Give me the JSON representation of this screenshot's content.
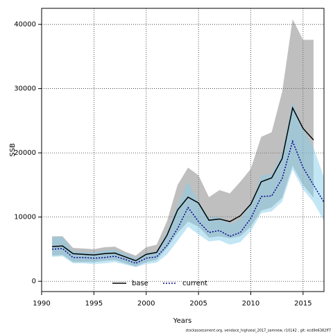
{
  "chart_data": {
    "type": "line",
    "xlabel": "Years",
    "ylabel": "SSB",
    "footnote": "stockassessment.org, vendace_highseal_2017_samnew, r10142 , git: ecd9e6382ff7",
    "xlim": [
      1990,
      2017
    ],
    "ylim": [
      -1600,
      42500
    ],
    "xticks": [
      1990,
      1995,
      2000,
      2005,
      2010,
      2015
    ],
    "yticks": [
      0,
      10000,
      20000,
      30000,
      40000
    ],
    "grid": true,
    "legend": "bottom",
    "series": [
      {
        "name": "base",
        "color": "#000000",
        "band_color": "#808080",
        "dash": false,
        "x": [
          1991,
          1992,
          1993,
          1994,
          1995,
          1996,
          1997,
          1998,
          1999,
          2000,
          2001,
          2002,
          2003,
          2004,
          2005,
          2006,
          2007,
          2008,
          2009,
          2010,
          2011,
          2012,
          2013,
          2014,
          2015,
          2016
        ],
        "values": [
          5400,
          5500,
          4300,
          4200,
          4100,
          4300,
          4400,
          3800,
          3200,
          4200,
          4500,
          7200,
          11100,
          13100,
          12200,
          9500,
          9700,
          9300,
          10200,
          12000,
          15500,
          16100,
          19100,
          27000,
          23800,
          22000
        ],
        "upper": [
          7000,
          7000,
          5200,
          5100,
          5000,
          5300,
          5400,
          4600,
          4000,
          5300,
          5700,
          9400,
          15000,
          17700,
          16500,
          13100,
          14200,
          13700,
          15500,
          17500,
          22500,
          23200,
          29500,
          40800,
          37600,
          37600
        ],
        "lower": [
          4000,
          4100,
          3000,
          3000,
          3000,
          3200,
          3300,
          2800,
          2300,
          3000,
          3300,
          5200,
          7500,
          9300,
          8500,
          6800,
          7000,
          6700,
          7000,
          8500,
          11000,
          11500,
          13000,
          18000,
          15000,
          13000
        ]
      },
      {
        "name": "current",
        "color": "#00008b",
        "band_color": "#87ceeb",
        "dash": true,
        "x": [
          1991,
          1992,
          1993,
          1994,
          1995,
          1996,
          1997,
          1998,
          1999,
          2000,
          2001,
          2002,
          2003,
          2004,
          2005,
          2006,
          2007,
          2008,
          2009,
          2010,
          2011,
          2012,
          2013,
          2014,
          2015,
          2016,
          2017
        ],
        "values": [
          5000,
          5100,
          3700,
          3700,
          3600,
          3700,
          3900,
          3400,
          2800,
          3600,
          3800,
          5600,
          8200,
          11500,
          9300,
          7600,
          7900,
          7000,
          7600,
          9800,
          13200,
          13300,
          16000,
          21800,
          17700,
          15000,
          12300
        ],
        "upper": [
          6900,
          6900,
          4700,
          4600,
          4500,
          4800,
          4900,
          4300,
          3600,
          4400,
          4700,
          7800,
          11800,
          15500,
          12400,
          9900,
          10000,
          8900,
          9700,
          12000,
          16500,
          16700,
          20000,
          28000,
          23700,
          20800,
          16200
        ],
        "lower": [
          3800,
          3900,
          2800,
          2800,
          2700,
          2800,
          3000,
          2600,
          2200,
          2700,
          2900,
          4200,
          6300,
          8500,
          7300,
          6200,
          6400,
          5700,
          6100,
          7800,
          10600,
          10900,
          12400,
          17400,
          14300,
          12300,
          9400
        ]
      }
    ]
  }
}
